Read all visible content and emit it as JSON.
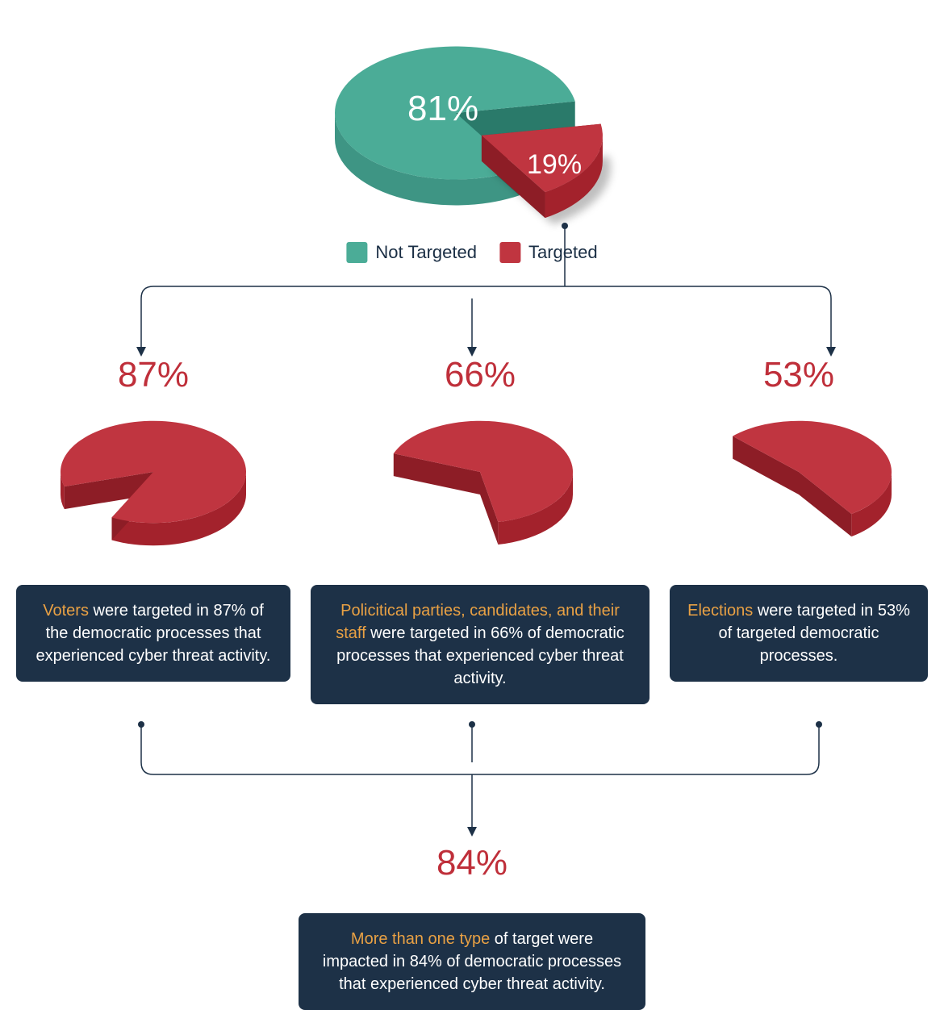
{
  "colors": {
    "teal_top": "#4bac97",
    "teal_side": "#3e9584",
    "teal_inner": "#2a7a6a",
    "red_top": "#c03540",
    "red_side": "#a3222c",
    "red_inner": "#8d1d26",
    "box_bg": "#1d3147",
    "box_text": "#ffffff",
    "highlight": "#e9a144",
    "connector": "#1d3147",
    "pct_text": "#bf2f3a",
    "legend_text": "#1a2e44",
    "bg": "#ffffff"
  },
  "top_pie": {
    "type": "pie-3d-exploded",
    "slices": [
      {
        "label": "81%",
        "value": 81,
        "color_key": "teal",
        "exploded": false
      },
      {
        "label": "19%",
        "value": 19,
        "color_key": "red",
        "exploded": true
      }
    ]
  },
  "legend": [
    {
      "label": "Not Targeted",
      "color_key": "teal"
    },
    {
      "label": "Targeted",
      "color_key": "red"
    }
  ],
  "columns": [
    {
      "pct": "87%",
      "value": 87,
      "highlight": "Voters",
      "rest": " were targeted in 87% of the democratic processes that experienced cyber threat activity."
    },
    {
      "pct": "66%",
      "value": 66,
      "highlight": "Policitical parties, candidates, and their staff",
      "rest": " were targeted in 66% of democratic processes that experienced cyber threat activity."
    },
    {
      "pct": "53%",
      "value": 53,
      "highlight": "Elections",
      "rest": " were targeted in 53% of targeted democratic processes."
    }
  ],
  "bottom": {
    "pct": "84%",
    "highlight": "More than one type",
    "rest": " of target were impacted in 84% of democratic processes that experienced cyber threat activity."
  },
  "style": {
    "pct_fontsize": 44,
    "legend_fontsize": 22,
    "box_fontsize": 20,
    "pie_depth": 32,
    "pie_tilt": 0.55
  }
}
